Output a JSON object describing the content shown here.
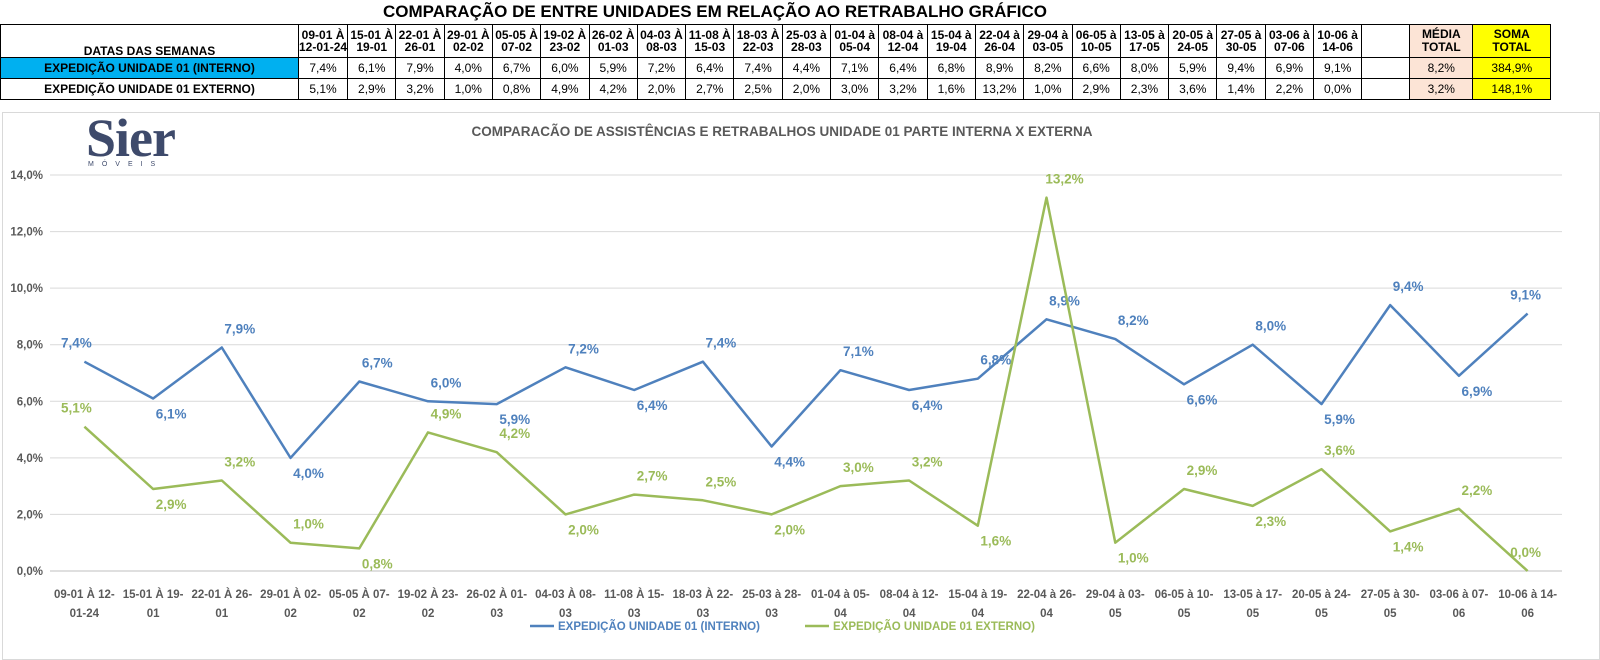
{
  "sheet": {
    "title": "COMPARAÇÃO DE ENTRE UNIDADES EM RELAÇÃO AO RETRABALHO GRÁFICO",
    "dates_label": "DATAS DAS SEMANAS",
    "weeks": [
      [
        "09-01 À",
        "12-01-24"
      ],
      [
        "15-01 À",
        "19-01"
      ],
      [
        "22-01 À",
        "26-01"
      ],
      [
        "29-01 À",
        "02-02"
      ],
      [
        "05-05 À",
        "07-02"
      ],
      [
        "19-02 À",
        "23-02"
      ],
      [
        "26-02 À",
        "01-03"
      ],
      [
        "04-03 À",
        "08-03"
      ],
      [
        "11-08 À",
        "15-03"
      ],
      [
        "18-03 À",
        "22-03"
      ],
      [
        "25-03 à",
        "28-03"
      ],
      [
        "01-04 à",
        "05-04"
      ],
      [
        "08-04 à",
        "12-04"
      ],
      [
        "15-04 à",
        "19-04"
      ],
      [
        "22-04 à",
        "26-04"
      ],
      [
        "29-04 à",
        "03-05"
      ],
      [
        "06-05 à",
        "10-05"
      ],
      [
        "13-05 à",
        "17-05"
      ],
      [
        "20-05 à",
        "24-05"
      ],
      [
        "27-05 à",
        "30-05"
      ],
      [
        "03-06 à",
        "07-06"
      ],
      [
        "10-06 à",
        "14-06"
      ]
    ],
    "media_header": [
      "MÉDIA",
      "TOTAL"
    ],
    "soma_header": [
      "SOMA",
      "TOTAL"
    ],
    "rows": [
      {
        "label": "EXPEDIÇÃO UNIDADE 01 (INTERNO)",
        "values": [
          "7,4%",
          "6,1%",
          "7,9%",
          "4,0%",
          "6,7%",
          "6,0%",
          "5,9%",
          "7,2%",
          "6,4%",
          "7,4%",
          "4,4%",
          "7,1%",
          "6,4%",
          "6,8%",
          "8,9%",
          "8,2%",
          "6,6%",
          "8,0%",
          "5,9%",
          "9,4%",
          "6,9%",
          "9,1%"
        ],
        "media": "8,2%",
        "soma": "384,9%"
      },
      {
        "label": "EXPEDIÇÃO UNIDADE 01 EXTERNO)",
        "values": [
          "5,1%",
          "2,9%",
          "3,2%",
          "1,0%",
          "0,8%",
          "4,9%",
          "4,2%",
          "2,0%",
          "2,7%",
          "2,5%",
          "2,0%",
          "3,0%",
          "3,2%",
          "1,6%",
          "13,2%",
          "1,0%",
          "2,9%",
          "2,3%",
          "3,6%",
          "1,4%",
          "2,2%",
          "0,0%"
        ],
        "media": "3,2%",
        "soma": "148,1%"
      }
    ]
  },
  "logo": {
    "text": "Sier",
    "subtext": "MÓVEIS"
  },
  "chart_data": {
    "type": "line",
    "title": "COMPARACÃO DE ASSISTÊNCIAS E RETRABALHOS UNIDADE 01 PARTE INTERNA X EXTERNA",
    "categories": [
      [
        "09-01 À 12-",
        "01-24"
      ],
      [
        "15-01 À 19-",
        "01"
      ],
      [
        "22-01 À 26-",
        "01"
      ],
      [
        "29-01 À 02-",
        "02"
      ],
      [
        "05-05 À 07-",
        "02"
      ],
      [
        "19-02 À 23-",
        "02"
      ],
      [
        "26-02 À 01-",
        "03"
      ],
      [
        "04-03 À 08-",
        "03"
      ],
      [
        "11-08 À 15-",
        "03"
      ],
      [
        "18-03 À 22-",
        "03"
      ],
      [
        "25-03 à 28-",
        "03"
      ],
      [
        "01-04 à 05-",
        "04"
      ],
      [
        "08-04 à 12-",
        "04"
      ],
      [
        "15-04 à 19-",
        "04"
      ],
      [
        "22-04 à 26-",
        "04"
      ],
      [
        "29-04 à 03-",
        "05"
      ],
      [
        "06-05 à 10-",
        "05"
      ],
      [
        "13-05 à 17-",
        "05"
      ],
      [
        "20-05 à 24-",
        "05"
      ],
      [
        "27-05 à 30-",
        "05"
      ],
      [
        "03-06 à 07-",
        "06"
      ],
      [
        "10-06 à 14-",
        "06"
      ]
    ],
    "ylim": [
      0,
      14
    ],
    "yticks": [
      "0,0%",
      "2,0%",
      "4,0%",
      "6,0%",
      "8,0%",
      "10,0%",
      "12,0%",
      "14,0%"
    ],
    "grid": true,
    "legend_position": "bottom",
    "series": [
      {
        "name": "EXPEDIÇÃO UNIDADE 01 (INTERNO)",
        "color": "#4f81bd",
        "values": [
          7.4,
          6.1,
          7.9,
          4.0,
          6.7,
          6.0,
          5.9,
          7.2,
          6.4,
          7.4,
          4.4,
          7.1,
          6.4,
          6.8,
          8.9,
          8.2,
          6.6,
          8.0,
          5.9,
          9.4,
          6.9,
          9.1
        ],
        "labels": [
          "7,4%",
          "6,1%",
          "7,9%",
          "4,0%",
          "6,7%",
          "6,0%",
          "5,9%",
          "7,2%",
          "6,4%",
          "7,4%",
          "4,4%",
          "7,1%",
          "6,4%",
          "6,8%",
          "8,9%",
          "8,2%",
          "6,6%",
          "8,0%",
          "5,9%",
          "9,4%",
          "6,9%",
          "9,1%"
        ]
      },
      {
        "name": "EXPEDIÇÃO UNIDADE 01 EXTERNO)",
        "color": "#9bbb59",
        "values": [
          5.1,
          2.9,
          3.2,
          1.0,
          0.8,
          4.9,
          4.2,
          2.0,
          2.7,
          2.5,
          2.0,
          3.0,
          3.2,
          1.6,
          13.2,
          1.0,
          2.9,
          2.3,
          3.6,
          1.4,
          2.2,
          0.0
        ],
        "labels": [
          "5,1%",
          "2,9%",
          "3,2%",
          "1,0%",
          "0,8%",
          "4,9%",
          "4,2%",
          "2,0%",
          "2,7%",
          "2,5%",
          "2,0%",
          "3,0%",
          "3,2%",
          "1,6%",
          "13,2%",
          "1,0%",
          "2,9%",
          "2,3%",
          "3,6%",
          "1,4%",
          "2,2%",
          "0,0%"
        ]
      }
    ]
  }
}
